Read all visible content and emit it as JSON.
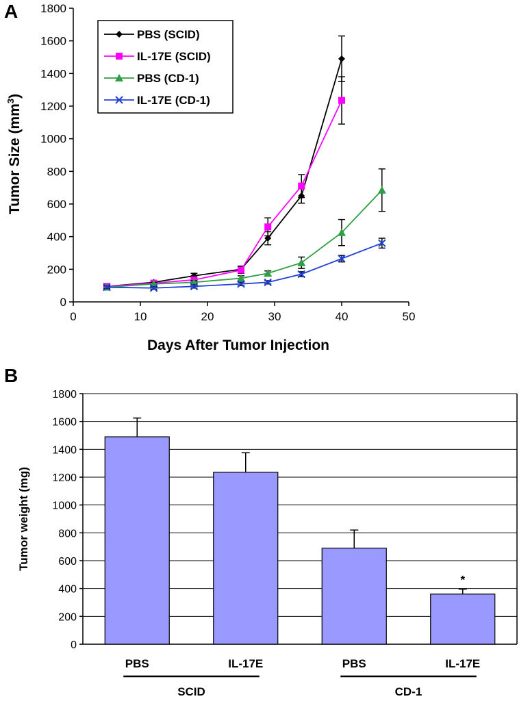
{
  "chart_data": [
    {
      "type": "line",
      "panel_label": "A",
      "xlabel": "Days After Tumor Injection",
      "ylabel": "Tumor Size (mm",
      "ylabel_sup": "3",
      "ylabel_tail": ")",
      "xlim": [
        0,
        50
      ],
      "ylim": [
        0,
        1800
      ],
      "xticks": [
        0,
        10,
        20,
        30,
        40,
        50
      ],
      "yticks": [
        0,
        200,
        400,
        600,
        800,
        1000,
        1200,
        1400,
        1600,
        1800
      ],
      "grid": false,
      "legend_position": "top-left",
      "series": [
        {
          "name": "PBS (SCID)",
          "color": "#000000",
          "marker": "diamond",
          "x": [
            5,
            12,
            18,
            25,
            29,
            34,
            40
          ],
          "y": [
            95,
            120,
            160,
            200,
            390,
            650,
            1490
          ],
          "err": [
            10,
            10,
            15,
            20,
            40,
            45,
            140
          ]
        },
        {
          "name": "IL-17E (SCID)",
          "color": "#ff00ff",
          "marker": "square",
          "x": [
            5,
            12,
            18,
            25,
            29,
            34,
            40
          ],
          "y": [
            95,
            115,
            135,
            195,
            460,
            710,
            1235
          ],
          "err": [
            10,
            10,
            15,
            20,
            55,
            70,
            145
          ]
        },
        {
          "name": "PBS (CD-1)",
          "color": "#2f9e44",
          "marker": "triangle",
          "x": [
            5,
            12,
            18,
            25,
            29,
            34,
            40,
            46
          ],
          "y": [
            90,
            110,
            120,
            145,
            175,
            240,
            425,
            685
          ],
          "err": [
            10,
            10,
            10,
            15,
            15,
            35,
            80,
            130
          ]
        },
        {
          "name": "IL-17E (CD-1)",
          "color": "#1f3fd6",
          "marker": "x",
          "x": [
            5,
            12,
            18,
            25,
            29,
            34,
            40,
            46
          ],
          "y": [
            90,
            85,
            95,
            110,
            120,
            170,
            265,
            360
          ],
          "err": [
            8,
            8,
            10,
            10,
            10,
            15,
            20,
            30
          ]
        }
      ]
    },
    {
      "type": "bar",
      "panel_label": "B",
      "ylabel": "Tumor weight (mg)",
      "ylim": [
        0,
        1800
      ],
      "yticks": [
        0,
        200,
        400,
        600,
        800,
        1000,
        1200,
        1400,
        1600,
        1800
      ],
      "grid": true,
      "categories": [
        "PBS",
        "IL-17E",
        "PBS",
        "IL-17E"
      ],
      "values": [
        1490,
        1235,
        690,
        360
      ],
      "errors": [
        135,
        140,
        130,
        35
      ],
      "bar_color": "#9999ff",
      "annotations": [
        {
          "category_index": 3,
          "text": "*"
        }
      ],
      "groups": [
        {
          "label": "SCID",
          "categories": [
            0,
            1
          ]
        },
        {
          "label": "CD-1",
          "categories": [
            2,
            3
          ]
        }
      ]
    }
  ]
}
